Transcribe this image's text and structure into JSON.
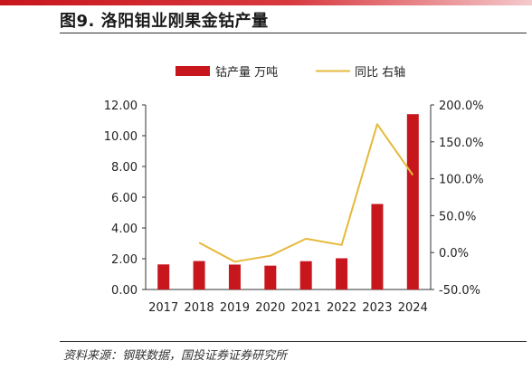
{
  "figure": {
    "title": "图9. 洛阳钼业刚果金钴产量",
    "source": "资料来源：钢联数据，国投证券证券研究所"
  },
  "chart_data": {
    "type": "bar",
    "categories": [
      "2017",
      "2018",
      "2019",
      "2020",
      "2021",
      "2022",
      "2023",
      "2024"
    ],
    "series": [
      {
        "name": "钴产量 万吨",
        "type": "bar",
        "axis": "left",
        "color": "#c8161d",
        "values": [
          1.63,
          1.85,
          1.62,
          1.55,
          1.84,
          2.03,
          5.56,
          11.4
        ]
      },
      {
        "name": "同比 右轴",
        "type": "line",
        "axis": "right",
        "color": "#e6b93b",
        "values": [
          null,
          13.5,
          -12.4,
          -4.3,
          18.7,
          10.3,
          173.9,
          105.0
        ]
      }
    ],
    "left_axis": {
      "ylim": [
        0,
        12
      ],
      "ticks": [
        0,
        2,
        4,
        6,
        8,
        10,
        12
      ],
      "tick_labels": [
        "0.00",
        "2.00",
        "4.00",
        "6.00",
        "8.00",
        "10.00",
        "12.00"
      ]
    },
    "right_axis": {
      "ylim": [
        -50,
        200
      ],
      "ticks": [
        -50,
        0,
        50,
        100,
        150,
        200
      ],
      "tick_labels": [
        "-50.0%",
        "0.0%",
        "50.0%",
        "100.0%",
        "150.0%",
        "200.0%"
      ]
    },
    "legend_position": "top-center",
    "grid": false
  }
}
